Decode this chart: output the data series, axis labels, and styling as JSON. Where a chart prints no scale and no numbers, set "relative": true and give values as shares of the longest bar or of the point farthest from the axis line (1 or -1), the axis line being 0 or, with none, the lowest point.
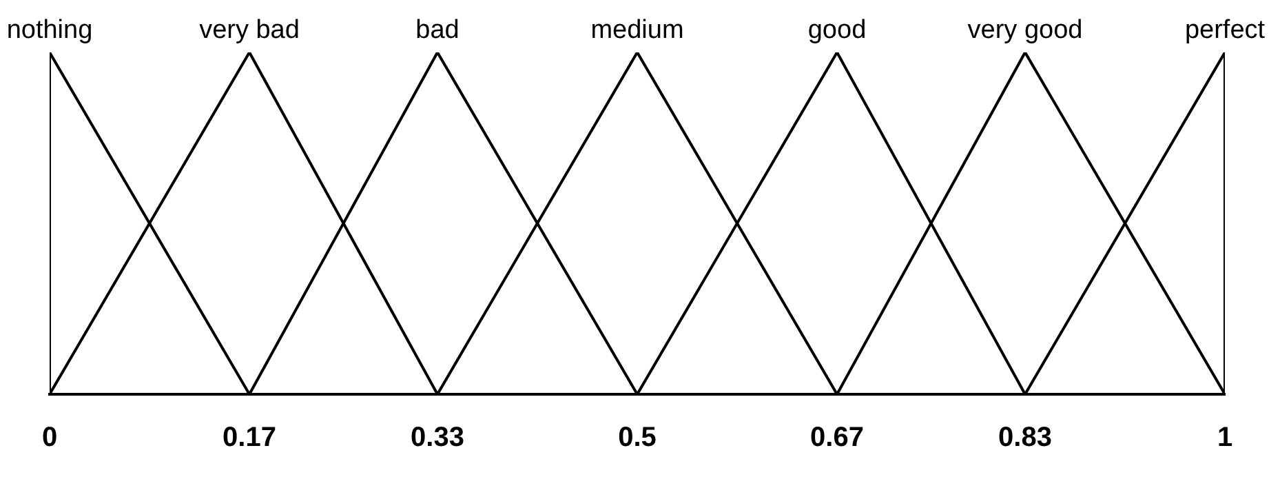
{
  "chart_data": {
    "type": "line",
    "relative": true,
    "legend": false,
    "grid": false,
    "tick_labels": "x",
    "marker": "none",
    "line_style": "solid",
    "xlim": [
      0,
      1
    ],
    "xticks": [
      0,
      0.17,
      0.33,
      0.5,
      0.67,
      0.83,
      1
    ],
    "series": [
      {
        "name": "nothing",
        "color": "#000000",
        "x": [
          0,
          0,
          0.17
        ],
        "values": [
          0,
          1,
          0
        ]
      },
      {
        "name": "very bad",
        "color": "#000000",
        "x": [
          0,
          0.17,
          0.33
        ],
        "values": [
          0,
          1,
          0
        ]
      },
      {
        "name": "bad",
        "color": "#000000",
        "x": [
          0.17,
          0.33,
          0.5
        ],
        "values": [
          0,
          1,
          0
        ]
      },
      {
        "name": "medium",
        "color": "#000000",
        "x": [
          0.33,
          0.5,
          0.67
        ],
        "values": [
          0,
          1,
          0
        ]
      },
      {
        "name": "good",
        "color": "#000000",
        "x": [
          0.5,
          0.67,
          0.83
        ],
        "values": [
          0,
          1,
          0
        ]
      },
      {
        "name": "very good",
        "color": "#000000",
        "x": [
          0.67,
          0.83,
          1
        ],
        "values": [
          0,
          1,
          0
        ]
      },
      {
        "name": "perfect",
        "color": "#000000",
        "x": [
          0.83,
          1,
          1
        ],
        "values": [
          0,
          1,
          0
        ]
      }
    ]
  }
}
